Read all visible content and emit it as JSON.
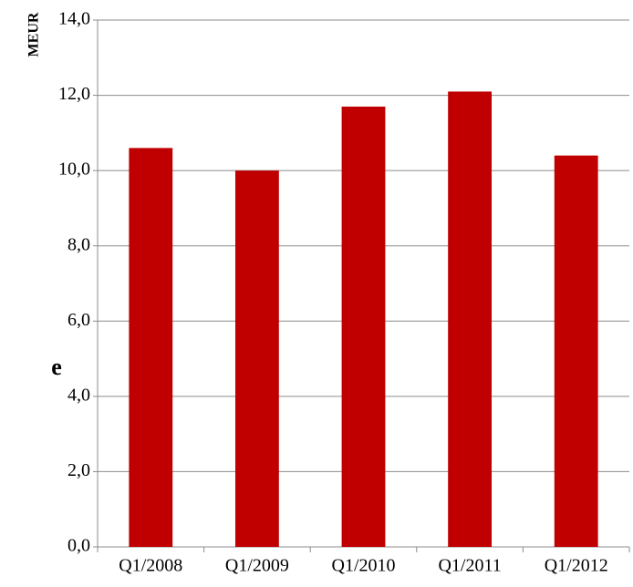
{
  "chart_data": {
    "type": "bar",
    "y_label": "MEUR",
    "annotation": "e",
    "categories": [
      "Q1/2008",
      "Q1/2009",
      "Q1/2010",
      "Q1/2011",
      "Q1/2012"
    ],
    "values": [
      10.6,
      10.0,
      11.7,
      12.1,
      10.4
    ],
    "color": "#c00000",
    "ylim": [
      0,
      14
    ],
    "yticks": [
      {
        "value": 0,
        "label": "0,0"
      },
      {
        "value": 2,
        "label": "2,0"
      },
      {
        "value": 4,
        "label": "4,0"
      },
      {
        "value": 6,
        "label": "6,0"
      },
      {
        "value": 8,
        "label": "8,0"
      },
      {
        "value": 10,
        "label": "10,0"
      },
      {
        "value": 12,
        "label": "12,0"
      },
      {
        "value": 14,
        "label": "14,0"
      }
    ],
    "grid": true
  }
}
